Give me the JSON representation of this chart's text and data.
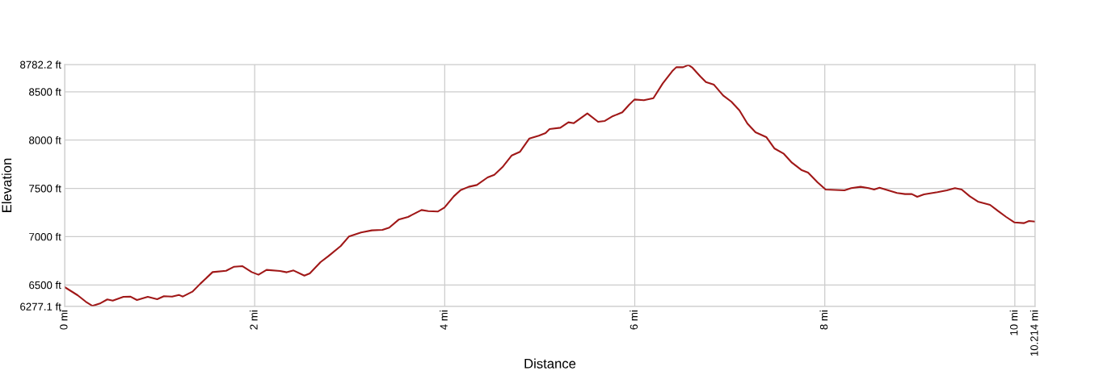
{
  "chart_data": {
    "type": "line",
    "xlabel": "Distance",
    "ylabel": "Elevation",
    "x": [
      0,
      0.136,
      0.222,
      0.293,
      0.378,
      0.449,
      0.506,
      0.619,
      0.69,
      0.761,
      0.875,
      0.974,
      1.045,
      1.131,
      1.202,
      1.244,
      1.344,
      1.429,
      1.557,
      1.699,
      1.784,
      1.869,
      1.969,
      2.04,
      2.125,
      2.267,
      2.338,
      2.409,
      2.523,
      2.58,
      2.693,
      2.778,
      2.906,
      2.991,
      3.119,
      3.233,
      3.345,
      3.416,
      3.515,
      3.614,
      3.756,
      3.827,
      3.926,
      3.997,
      4.096,
      4.167,
      4.252,
      4.338,
      4.451,
      4.522,
      4.607,
      4.706,
      4.791,
      4.891,
      4.99,
      5.061,
      5.104,
      5.217,
      5.302,
      5.359,
      5.501,
      5.614,
      5.685,
      5.77,
      5.869,
      5.94,
      5.997,
      6.096,
      6.196,
      6.295,
      6.394,
      6.437,
      6.508,
      6.565,
      6.607,
      6.692,
      6.749,
      6.834,
      6.93,
      7.016,
      7.101,
      7.186,
      7.271,
      7.384,
      7.469,
      7.569,
      7.654,
      7.753,
      7.824,
      7.923,
      8.009,
      8.207,
      8.278,
      8.377,
      8.462,
      8.519,
      8.576,
      8.76,
      8.845,
      8.916,
      8.973,
      9.044,
      9.186,
      9.285,
      9.37,
      9.441,
      9.526,
      9.611,
      9.739,
      9.824,
      9.909,
      9.994,
      10.094,
      10.15,
      10.207
    ],
    "series": [
      {
        "color": "#a01818",
        "values": [
          6478,
          6394,
          6327,
          6283,
          6311,
          6350,
          6338,
          6377,
          6380,
          6344,
          6377,
          6352,
          6383,
          6380,
          6397,
          6380,
          6430,
          6514,
          6633,
          6647,
          6689,
          6695,
          6633,
          6606,
          6656,
          6645,
          6631,
          6650,
          6597,
          6620,
          6736,
          6800,
          6903,
          7001,
          7043,
          7065,
          7070,
          7093,
          7176,
          7204,
          7276,
          7265,
          7260,
          7301,
          7418,
          7482,
          7516,
          7535,
          7613,
          7641,
          7719,
          7841,
          7878,
          8017,
          8045,
          8073,
          8114,
          8128,
          8184,
          8175,
          8276,
          8189,
          8198,
          8248,
          8287,
          8365,
          8420,
          8412,
          8434,
          8587,
          8713,
          8754,
          8754,
          8777,
          8749,
          8657,
          8601,
          8573,
          8462,
          8398,
          8309,
          8170,
          8081,
          8031,
          7914,
          7858,
          7766,
          7691,
          7663,
          7563,
          7488,
          7480,
          7502,
          7516,
          7502,
          7488,
          7507,
          7452,
          7441,
          7441,
          7413,
          7438,
          7460,
          7480,
          7502,
          7488,
          7418,
          7363,
          7329,
          7265,
          7204,
          7148,
          7140,
          7162,
          7157
        ]
      }
    ],
    "xlim": [
      0,
      10.214
    ],
    "ylim": [
      6277.1,
      8782.2
    ],
    "xticks": [
      {
        "value": 0,
        "label": "0 mi"
      },
      {
        "value": 2,
        "label": "2 mi"
      },
      {
        "value": 4,
        "label": "4 mi"
      },
      {
        "value": 6,
        "label": "6 mi"
      },
      {
        "value": 8,
        "label": "8 mi"
      },
      {
        "value": 10,
        "label": "10 mi"
      },
      {
        "value": 10.214,
        "label": "10.214 mi"
      }
    ],
    "yticks": [
      {
        "value": 6277.1,
        "label": "6277.1 ft"
      },
      {
        "value": 6500,
        "label": "6500 ft"
      },
      {
        "value": 7000,
        "label": "7000 ft"
      },
      {
        "value": 7500,
        "label": "7500 ft"
      },
      {
        "value": 8000,
        "label": "8000 ft"
      },
      {
        "value": 8500,
        "label": "8500 ft"
      },
      {
        "value": 8782.2,
        "label": "8782.2 ft"
      }
    ],
    "grid": true,
    "legend": false,
    "marker": "none",
    "line_style": "solid"
  }
}
